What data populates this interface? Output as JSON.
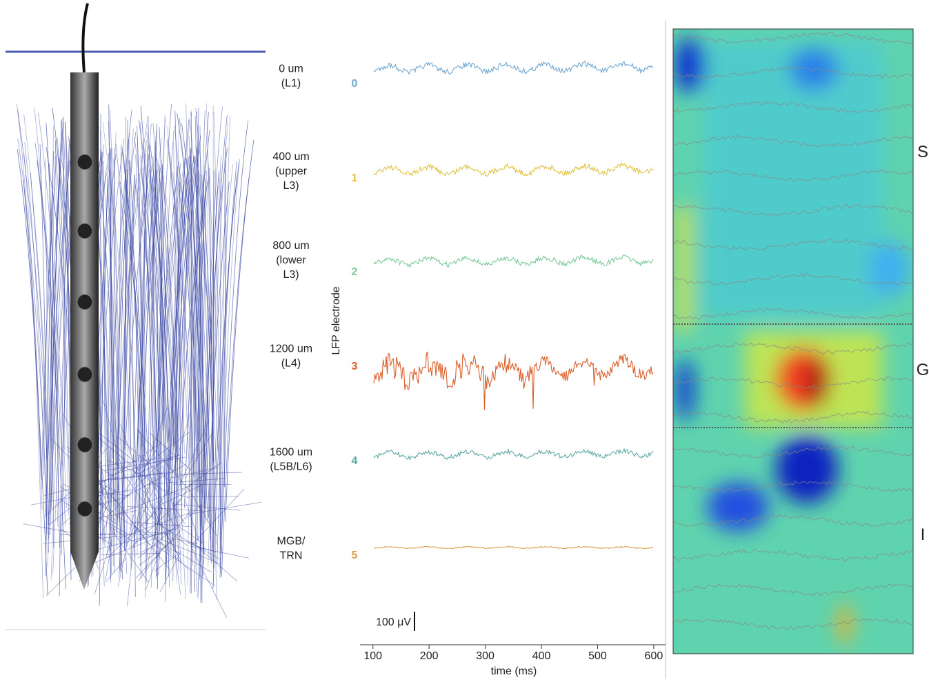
{
  "lfp_panel": {
    "y_label": "LFP electrode",
    "x_label": "time (ms)",
    "xlim": [
      77,
      621
    ],
    "xticks": [
      100,
      200,
      300,
      400,
      500,
      600
    ],
    "scale_bar": "100 μV",
    "channels": [
      {
        "depth": [
          "0 um",
          "(L1)"
        ],
        "electrode": "0",
        "color": "#6fa6d2"
      },
      {
        "depth": [
          "400 um",
          "(upper",
          "L3)"
        ],
        "electrode": "1",
        "color": "#e2c140"
      },
      {
        "depth": [
          "800 um",
          "(lower",
          "L3)"
        ],
        "electrode": "2",
        "color": "#7cc99a"
      },
      {
        "depth": [
          "1200 um",
          "(L4)"
        ],
        "electrode": "3",
        "color": "#d95f2b"
      },
      {
        "depth": [
          "1600 um",
          "(L5B/L6)"
        ],
        "electrode": "4",
        "color": "#5fa8a6"
      },
      {
        "depth": [
          "MGB/",
          "TRN"
        ],
        "electrode": "5",
        "color": "#d9a04a"
      }
    ]
  },
  "csd_panel": {
    "layer_labels": [
      "S",
      "G",
      "I"
    ]
  }
}
